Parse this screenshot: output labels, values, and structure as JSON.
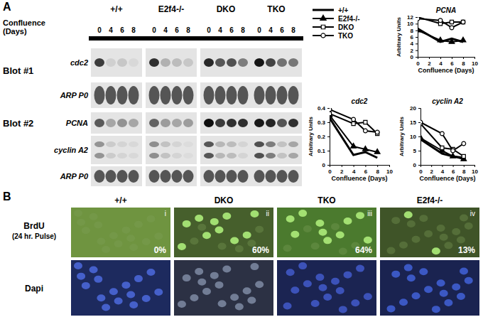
{
  "panel_a": {
    "label": "A",
    "confluence_label": [
      "Confluence",
      "(Days)"
    ],
    "genotypes": [
      "+/+",
      "E2f4-/-",
      "DKO",
      "TKO"
    ],
    "days": [
      0,
      4,
      6,
      8
    ],
    "blots": [
      {
        "label": "Blot #1",
        "rows": [
          "cdc2",
          "ARP P0"
        ]
      },
      {
        "label": "Blot #2",
        "rows": [
          "PCNA",
          "cyclin A2",
          "ARP P0"
        ]
      }
    ]
  },
  "chart_data": [
    {
      "type": "line",
      "title": "PCNA",
      "xlabel": "Confluence (Days)",
      "ylabel": "Arbitrary Units",
      "x": [
        0,
        4,
        6,
        8
      ],
      "xlim": [
        0,
        10
      ],
      "xticks": [
        0,
        2,
        4,
        6,
        8,
        10
      ],
      "ylim": [
        0,
        12
      ],
      "yticks": [
        0,
        2,
        4,
        6,
        8,
        10,
        12
      ],
      "series": [
        {
          "name": "+/+",
          "color": "#000000",
          "marker": "none",
          "values": [
            8.5,
            4.5,
            5.5,
            4.5
          ]
        },
        {
          "name": "E2f4-/-",
          "color": "#000000",
          "marker": "triangle",
          "values": [
            8,
            5,
            4.5,
            5
          ]
        },
        {
          "name": "DKO",
          "color": "#000000",
          "marker": "square-open",
          "values": [
            12,
            10,
            10.5,
            10.5
          ]
        },
        {
          "name": "TKO",
          "color": "#000000",
          "marker": "circle-open",
          "values": [
            11.5,
            11,
            8.8,
            10.5
          ]
        }
      ]
    },
    {
      "type": "line",
      "title": "cdc2",
      "xlabel": "Confluence (Days)",
      "ylabel": "Arbitrary Units",
      "x": [
        0,
        4,
        6,
        8
      ],
      "xlim": [
        0,
        10
      ],
      "xticks": [
        0,
        2,
        4,
        6,
        8,
        10
      ],
      "ylim": [
        0,
        0.4
      ],
      "yticks": [
        0,
        0.1,
        0.2,
        0.3,
        0.4
      ],
      "series": [
        {
          "name": "+/+",
          "color": "#000000",
          "marker": "none",
          "values": [
            0.33,
            0.07,
            0.09,
            0.05
          ]
        },
        {
          "name": "E2f4-/-",
          "color": "#000000",
          "marker": "triangle",
          "values": [
            0.35,
            0.13,
            0.11,
            0.09
          ]
        },
        {
          "name": "DKO",
          "color": "#000000",
          "marker": "square-open",
          "values": [
            0.36,
            0.29,
            0.3,
            0.22
          ]
        },
        {
          "name": "TKO",
          "color": "#000000",
          "marker": "circle-open",
          "values": [
            0.39,
            0.32,
            0.24,
            0.23
          ]
        }
      ]
    },
    {
      "type": "line",
      "title": "cyclin A2",
      "xlabel": "Confluence (Days)",
      "ylabel": "Arbitrary Units",
      "x": [
        0,
        4,
        6,
        8
      ],
      "xlim": [
        0,
        10
      ],
      "xticks": [
        0,
        2,
        4,
        6,
        8,
        10
      ],
      "ylim": [
        0,
        20
      ],
      "yticks": [
        0,
        5,
        10,
        15,
        20
      ],
      "series": [
        {
          "name": "+/+",
          "color": "#000000",
          "marker": "none",
          "values": [
            9,
            4,
            3,
            2.5
          ]
        },
        {
          "name": "E2f4-/-",
          "color": "#000000",
          "marker": "triangle",
          "values": [
            9.5,
            5,
            3,
            2
          ]
        },
        {
          "name": "DKO",
          "color": "#000000",
          "marker": "square-open",
          "values": [
            14.5,
            6,
            5.5,
            3
          ]
        },
        {
          "name": "TKO",
          "color": "#000000",
          "marker": "circle-open",
          "values": [
            15,
            11,
            5,
            7.5
          ]
        }
      ]
    }
  ],
  "panel_b": {
    "label": "B",
    "brdu_label": [
      "BrdU",
      "(24 hr. Pulse)"
    ],
    "dapi_label": "Dapi",
    "columns": [
      {
        "header": "+/+",
        "numeral": "i",
        "brdu_percent": {
          "value": 0,
          "label": "0%"
        }
      },
      {
        "header": "DKO",
        "numeral": "ii",
        "brdu_percent": {
          "value": 60,
          "label": "60%"
        }
      },
      {
        "header": "TKO",
        "numeral": "iii",
        "brdu_percent": {
          "value": 64,
          "label": "64%"
        }
      },
      {
        "header": "E2f4-/-",
        "numeral": "iv",
        "brdu_percent": {
          "value": 13,
          "label": "13%"
        }
      }
    ]
  }
}
